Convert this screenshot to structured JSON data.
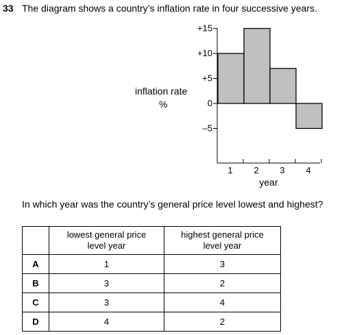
{
  "question": {
    "number": "33",
    "intro": "The diagram shows a country’s inflation rate in four successive years.",
    "ask": "In which year was the country’s general price level lowest and highest?"
  },
  "chart_data": {
    "type": "bar",
    "categories": [
      "1",
      "2",
      "3",
      "4"
    ],
    "values": [
      10,
      15,
      7,
      -5
    ],
    "ylabel_line1": "inflation rate",
    "ylabel_line2": "%",
    "xlabel": "year",
    "yticks": [
      "+15",
      "+10",
      "+5",
      "0",
      "–5"
    ],
    "ytick_values": [
      15,
      10,
      5,
      0,
      -5
    ],
    "ylim": [
      -5,
      15
    ],
    "bar_color": "#c0c0c0",
    "grid": false
  },
  "table": {
    "headers": [
      "",
      "lowest general price level year",
      "highest general price level year"
    ],
    "rows": [
      {
        "option": "A",
        "lowest": "1",
        "highest": "3"
      },
      {
        "option": "B",
        "lowest": "3",
        "highest": "2"
      },
      {
        "option": "C",
        "lowest": "3",
        "highest": "4"
      },
      {
        "option": "D",
        "lowest": "4",
        "highest": "2"
      }
    ]
  }
}
